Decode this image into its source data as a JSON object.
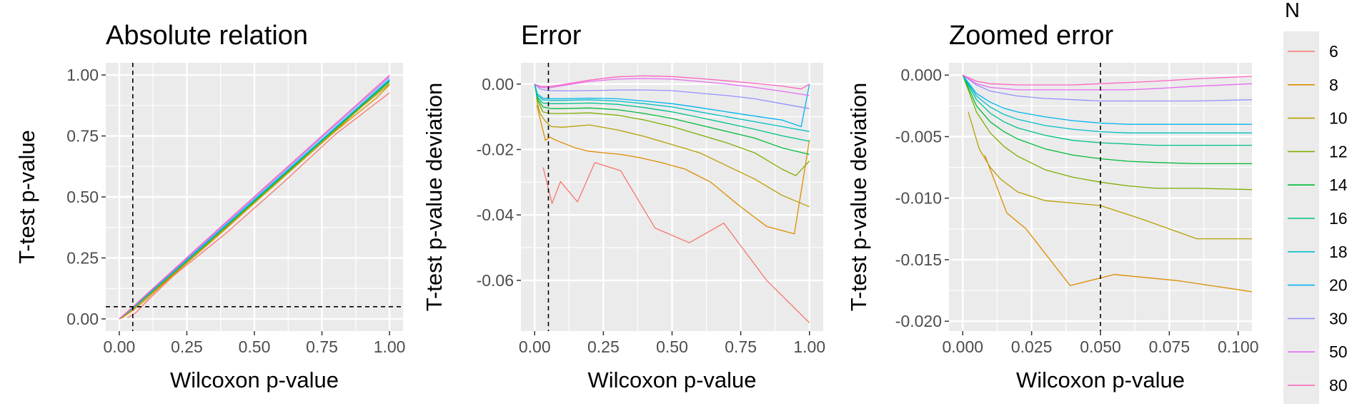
{
  "legend": {
    "title": "N",
    "items": [
      {
        "label": "6",
        "color": "#F8766D"
      },
      {
        "label": "8",
        "color": "#DE8C00"
      },
      {
        "label": "10",
        "color": "#B79F00"
      },
      {
        "label": "12",
        "color": "#7CAE00"
      },
      {
        "label": "14",
        "color": "#00BA38"
      },
      {
        "label": "16",
        "color": "#00C08B"
      },
      {
        "label": "18",
        "color": "#00BFC4"
      },
      {
        "label": "20",
        "color": "#00B4F0"
      },
      {
        "label": "30",
        "color": "#9590FF"
      },
      {
        "label": "50",
        "color": "#E76BF3"
      },
      {
        "label": "80",
        "color": "#FF62BC"
      }
    ]
  },
  "chart_data": [
    {
      "type": "line",
      "title": "Absolute relation",
      "xlabel": "Wilcoxon p-value",
      "ylabel": "T-test p-value",
      "xlim": [
        -0.05,
        1.05
      ],
      "ylim": [
        -0.05,
        1.05
      ],
      "xticks": [
        "0.00",
        "0.25",
        "0.50",
        "0.75",
        "1.00"
      ],
      "xtick_values": [
        0,
        0.25,
        0.5,
        0.75,
        1
      ],
      "yticks": [
        "0.00",
        "0.25",
        "0.50",
        "0.75",
        "1.00"
      ],
      "ytick_values": [
        0,
        0.25,
        0.5,
        0.75,
        1
      ],
      "vline": 0.05,
      "hline": 0.05,
      "grid": true,
      "series": [
        {
          "name": "6",
          "x": [
            0.03,
            0.06,
            0.1,
            0.2,
            0.4,
            0.6,
            0.8,
            1.0
          ],
          "y": [
            0.004,
            0.024,
            0.07,
            0.176,
            0.356,
            0.552,
            0.757,
            0.927
          ]
        },
        {
          "name": "8",
          "x": [
            0.008,
            0.05,
            0.1,
            0.2,
            0.4,
            0.6,
            0.8,
            0.95,
            1.0
          ],
          "y": [
            0.002,
            0.035,
            0.08,
            0.18,
            0.375,
            0.575,
            0.77,
            0.904,
            0.96
          ]
        },
        {
          "name": "10",
          "x": [
            0.002,
            0.05,
            0.1,
            0.3,
            0.5,
            0.7,
            0.9,
            1.0
          ],
          "y": [
            0.0,
            0.04,
            0.087,
            0.28,
            0.475,
            0.672,
            0.872,
            0.963
          ]
        },
        {
          "name": "12",
          "x": [
            0.0,
            0.05,
            0.1,
            0.3,
            0.5,
            0.7,
            0.9,
            1.0
          ],
          "y": [
            0.0,
            0.042,
            0.09,
            0.285,
            0.48,
            0.678,
            0.876,
            0.971
          ]
        },
        {
          "name": "14",
          "x": [
            0.0,
            0.05,
            0.1,
            0.3,
            0.5,
            0.7,
            0.9,
            1.0
          ],
          "y": [
            0.0,
            0.043,
            0.092,
            0.287,
            0.484,
            0.681,
            0.879,
            0.975
          ]
        },
        {
          "name": "16",
          "x": [
            0.0,
            0.05,
            0.1,
            0.3,
            0.5,
            0.7,
            0.9,
            1.0
          ],
          "y": [
            0.0,
            0.044,
            0.093,
            0.289,
            0.486,
            0.683,
            0.881,
            0.978
          ]
        },
        {
          "name": "18",
          "x": [
            0.0,
            0.05,
            0.1,
            0.3,
            0.5,
            0.7,
            0.9,
            1.0
          ],
          "y": [
            0.0,
            0.045,
            0.094,
            0.29,
            0.488,
            0.685,
            0.883,
            0.98
          ]
        },
        {
          "name": "20",
          "x": [
            0.0,
            0.05,
            0.1,
            0.3,
            0.5,
            0.7,
            0.9,
            1.0
          ],
          "y": [
            0.0,
            0.046,
            0.095,
            0.291,
            0.489,
            0.686,
            0.884,
            0.982
          ]
        },
        {
          "name": "30",
          "x": [
            0.0,
            0.05,
            0.1,
            0.3,
            0.5,
            0.7,
            0.9,
            1.0
          ],
          "y": [
            0.0,
            0.048,
            0.098,
            0.296,
            0.495,
            0.694,
            0.893,
            0.99
          ]
        },
        {
          "name": "50",
          "x": [
            0.0,
            0.05,
            0.1,
            0.3,
            0.5,
            0.7,
            0.9,
            1.0
          ],
          "y": [
            0.0,
            0.049,
            0.1,
            0.301,
            0.501,
            0.7,
            0.899,
            0.997
          ]
        },
        {
          "name": "80",
          "x": [
            0.0,
            0.05,
            0.1,
            0.3,
            0.5,
            0.7,
            0.9,
            1.0
          ],
          "y": [
            0.0,
            0.049,
            0.1,
            0.302,
            0.502,
            0.701,
            0.9,
            0.999
          ]
        }
      ]
    },
    {
      "type": "line",
      "title": "Error",
      "xlabel": "Wilcoxon p-value",
      "ylabel": "T-test p-value deviation",
      "xlim": [
        -0.05,
        1.05
      ],
      "ylim": [
        -0.0755,
        0.0065
      ],
      "xticks": [
        "0.00",
        "0.25",
        "0.50",
        "0.75",
        "1.00"
      ],
      "xtick_values": [
        0,
        0.25,
        0.5,
        0.75,
        1
      ],
      "yticks": [
        "-0.06",
        "-0.04",
        "-0.02",
        "0.00"
      ],
      "ytick_values": [
        -0.06,
        -0.04,
        -0.02,
        0
      ],
      "vline": 0.05,
      "grid": true,
      "series": [
        {
          "name": "6",
          "x": [
            0.031,
            0.063,
            0.094,
            0.156,
            0.219,
            0.313,
            0.438,
            0.563,
            0.688,
            0.844,
            1.0
          ],
          "y": [
            -0.0255,
            -0.0365,
            -0.0298,
            -0.036,
            -0.024,
            -0.0265,
            -0.044,
            -0.0485,
            -0.0425,
            -0.06,
            -0.073
          ]
        },
        {
          "name": "8",
          "x": [
            0.008,
            0.039,
            0.055,
            0.078,
            0.148,
            0.195,
            0.25,
            0.313,
            0.383,
            0.461,
            0.547,
            0.641,
            0.742,
            0.844,
            0.945,
            1.0
          ],
          "y": [
            -0.0065,
            -0.0172,
            -0.0162,
            -0.0172,
            -0.0195,
            -0.0205,
            -0.021,
            -0.0215,
            -0.0225,
            -0.024,
            -0.026,
            -0.03,
            -0.037,
            -0.0435,
            -0.0458,
            -0.017
          ]
        },
        {
          "name": "10",
          "x": [
            0.002,
            0.01,
            0.02,
            0.04,
            0.06,
            0.1,
            0.2,
            0.3,
            0.4,
            0.5,
            0.6,
            0.7,
            0.8,
            0.9,
            1.0
          ],
          "y": [
            0.0,
            -0.006,
            -0.009,
            -0.0115,
            -0.013,
            -0.0132,
            -0.0125,
            -0.014,
            -0.016,
            -0.0185,
            -0.021,
            -0.025,
            -0.029,
            -0.034,
            -0.0375
          ]
        },
        {
          "name": "12",
          "x": [
            0.0,
            0.01,
            0.03,
            0.06,
            0.1,
            0.2,
            0.3,
            0.4,
            0.5,
            0.6,
            0.7,
            0.8,
            0.9,
            0.95,
            1.0
          ],
          "y": [
            0.0,
            -0.005,
            -0.0085,
            -0.009,
            -0.009,
            -0.0088,
            -0.0095,
            -0.011,
            -0.013,
            -0.0155,
            -0.018,
            -0.021,
            -0.026,
            -0.028,
            -0.0235
          ]
        },
        {
          "name": "14",
          "x": [
            0.0,
            0.01,
            0.03,
            0.06,
            0.1,
            0.2,
            0.3,
            0.4,
            0.5,
            0.6,
            0.7,
            0.8,
            0.9,
            1.0
          ],
          "y": [
            0.0,
            -0.0045,
            -0.007,
            -0.0075,
            -0.0075,
            -0.0073,
            -0.0078,
            -0.009,
            -0.0105,
            -0.0125,
            -0.0145,
            -0.0165,
            -0.0195,
            -0.0215
          ]
        },
        {
          "name": "16",
          "x": [
            0.0,
            0.01,
            0.03,
            0.06,
            0.1,
            0.2,
            0.3,
            0.4,
            0.5,
            0.6,
            0.7,
            0.8,
            0.9,
            1.0
          ],
          "y": [
            0.0,
            -0.004,
            -0.0058,
            -0.006,
            -0.006,
            -0.0058,
            -0.0062,
            -0.0072,
            -0.0085,
            -0.0102,
            -0.012,
            -0.0138,
            -0.0158,
            -0.0175
          ]
        },
        {
          "name": "18",
          "x": [
            0.0,
            0.01,
            0.03,
            0.06,
            0.1,
            0.2,
            0.3,
            0.4,
            0.5,
            0.6,
            0.7,
            0.8,
            0.9,
            1.0
          ],
          "y": [
            0.0,
            -0.0035,
            -0.0048,
            -0.005,
            -0.005,
            -0.0048,
            -0.0052,
            -0.006,
            -0.007,
            -0.0085,
            -0.01,
            -0.0115,
            -0.013,
            -0.0145
          ]
        },
        {
          "name": "20",
          "x": [
            0.0,
            0.01,
            0.03,
            0.06,
            0.1,
            0.2,
            0.3,
            0.4,
            0.5,
            0.6,
            0.7,
            0.8,
            0.9,
            0.97,
            1.0
          ],
          "y": [
            0.0,
            -0.003,
            -0.0043,
            -0.0045,
            -0.0045,
            -0.0043,
            -0.0045,
            -0.0052,
            -0.006,
            -0.0072,
            -0.0085,
            -0.0098,
            -0.011,
            -0.013,
            0.0
          ]
        },
        {
          "name": "30",
          "x": [
            0.0,
            0.02,
            0.05,
            0.1,
            0.2,
            0.3,
            0.4,
            0.5,
            0.6,
            0.7,
            0.8,
            0.9,
            1.0
          ],
          "y": [
            0.0,
            -0.0015,
            -0.002,
            -0.0021,
            -0.002,
            -0.0018,
            -0.0018,
            -0.002,
            -0.0028,
            -0.0035,
            -0.0045,
            -0.006,
            -0.0075
          ]
        },
        {
          "name": "50",
          "x": [
            0.0,
            0.02,
            0.05,
            0.1,
            0.2,
            0.3,
            0.4,
            0.5,
            0.6,
            0.7,
            0.8,
            0.9,
            1.0
          ],
          "y": [
            0.0,
            -0.001,
            -0.0012,
            -0.0005,
            0.0008,
            0.0015,
            0.0017,
            0.0015,
            0.0008,
            0.0,
            -0.001,
            -0.0022,
            -0.0035
          ]
        },
        {
          "name": "80",
          "x": [
            0.0,
            0.02,
            0.05,
            0.1,
            0.2,
            0.3,
            0.4,
            0.5,
            0.6,
            0.7,
            0.8,
            0.9,
            0.97,
            1.0
          ],
          "y": [
            0.0,
            -0.0007,
            -0.0008,
            -0.0002,
            0.0012,
            0.0022,
            0.0025,
            0.0023,
            0.0017,
            0.001,
            0.0002,
            -0.0006,
            -0.0015,
            0.0
          ]
        }
      ]
    },
    {
      "type": "line",
      "title": "Zoomed error",
      "xlabel": "Wilcoxon p-value",
      "ylabel": "T-test p-value deviation",
      "xlim": [
        -0.005,
        0.105
      ],
      "ylim": [
        -0.0208,
        0.001
      ],
      "xticks": [
        "0.000",
        "0.025",
        "0.050",
        "0.075",
        "0.100"
      ],
      "xtick_values": [
        0,
        0.025,
        0.05,
        0.075,
        0.1
      ],
      "yticks": [
        "-0.020",
        "-0.015",
        "-0.010",
        "-0.005",
        "0.000"
      ],
      "ytick_values": [
        -0.02,
        -0.015,
        -0.01,
        -0.005,
        0
      ],
      "vline": 0.05,
      "grid": true,
      "series": [
        {
          "name": "8",
          "x": [
            0.008,
            0.016,
            0.023,
            0.039,
            0.055,
            0.078,
            0.105
          ],
          "y": [
            -0.0065,
            -0.0112,
            -0.0125,
            -0.0171,
            -0.0162,
            -0.0167,
            -0.0176
          ]
        },
        {
          "name": "10",
          "x": [
            0.002,
            0.006,
            0.01,
            0.014,
            0.02,
            0.03,
            0.04,
            0.05,
            0.065,
            0.085,
            0.105
          ],
          "y": [
            -0.003,
            -0.006,
            -0.0075,
            -0.0085,
            -0.0095,
            -0.0102,
            -0.0104,
            -0.0106,
            -0.0117,
            -0.0133,
            -0.0133
          ]
        },
        {
          "name": "12",
          "x": [
            0.0,
            0.005,
            0.01,
            0.015,
            0.02,
            0.03,
            0.04,
            0.05,
            0.06,
            0.07,
            0.085,
            0.105
          ],
          "y": [
            0.0,
            -0.003,
            -0.0047,
            -0.0058,
            -0.0066,
            -0.0077,
            -0.0083,
            -0.0087,
            -0.009,
            -0.0092,
            -0.0092,
            -0.0093
          ]
        },
        {
          "name": "14",
          "x": [
            0.0,
            0.005,
            0.01,
            0.015,
            0.02,
            0.03,
            0.04,
            0.05,
            0.06,
            0.07,
            0.085,
            0.105
          ],
          "y": [
            0.0,
            -0.0025,
            -0.0038,
            -0.0046,
            -0.0052,
            -0.006,
            -0.0065,
            -0.0068,
            -0.007,
            -0.0071,
            -0.0072,
            -0.0072
          ]
        },
        {
          "name": "16",
          "x": [
            0.0,
            0.005,
            0.01,
            0.015,
            0.02,
            0.03,
            0.04,
            0.05,
            0.06,
            0.07,
            0.085,
            0.105
          ],
          "y": [
            0.0,
            -0.002,
            -0.0031,
            -0.0038,
            -0.0043,
            -0.0049,
            -0.0053,
            -0.0055,
            -0.0056,
            -0.0057,
            -0.0057,
            -0.0057
          ]
        },
        {
          "name": "18",
          "x": [
            0.0,
            0.005,
            0.01,
            0.015,
            0.02,
            0.03,
            0.04,
            0.05,
            0.06,
            0.07,
            0.085,
            0.105
          ],
          "y": [
            0.0,
            -0.0017,
            -0.0026,
            -0.0032,
            -0.0036,
            -0.0041,
            -0.0044,
            -0.0046,
            -0.0047,
            -0.0047,
            -0.0047,
            -0.0047
          ]
        },
        {
          "name": "20",
          "x": [
            0.0,
            0.005,
            0.01,
            0.015,
            0.02,
            0.03,
            0.04,
            0.05,
            0.06,
            0.07,
            0.085,
            0.105
          ],
          "y": [
            0.0,
            -0.0015,
            -0.0022,
            -0.0027,
            -0.003,
            -0.0034,
            -0.0037,
            -0.0039,
            -0.004,
            -0.004,
            -0.004,
            -0.004
          ]
        },
        {
          "name": "30",
          "x": [
            0.0,
            0.005,
            0.01,
            0.02,
            0.03,
            0.04,
            0.05,
            0.06,
            0.07,
            0.085,
            0.105
          ],
          "y": [
            0.0,
            -0.0008,
            -0.0013,
            -0.0017,
            -0.0019,
            -0.002,
            -0.0021,
            -0.0021,
            -0.0021,
            -0.0021,
            -0.002
          ]
        },
        {
          "name": "50",
          "x": [
            0.0,
            0.005,
            0.01,
            0.02,
            0.03,
            0.04,
            0.05,
            0.06,
            0.07,
            0.085,
            0.105
          ],
          "y": [
            0.0,
            -0.0007,
            -0.001,
            -0.0012,
            -0.0012,
            -0.0012,
            -0.0012,
            -0.0012,
            -0.0011,
            -0.0009,
            -0.0007
          ]
        },
        {
          "name": "80",
          "x": [
            0.0,
            0.005,
            0.01,
            0.02,
            0.03,
            0.04,
            0.05,
            0.06,
            0.07,
            0.085,
            0.105
          ],
          "y": [
            0.0,
            -0.0005,
            -0.0007,
            -0.0008,
            -0.0008,
            -0.0008,
            -0.0007,
            -0.0006,
            -0.0005,
            -0.0003,
            -0.0001
          ]
        }
      ]
    }
  ]
}
